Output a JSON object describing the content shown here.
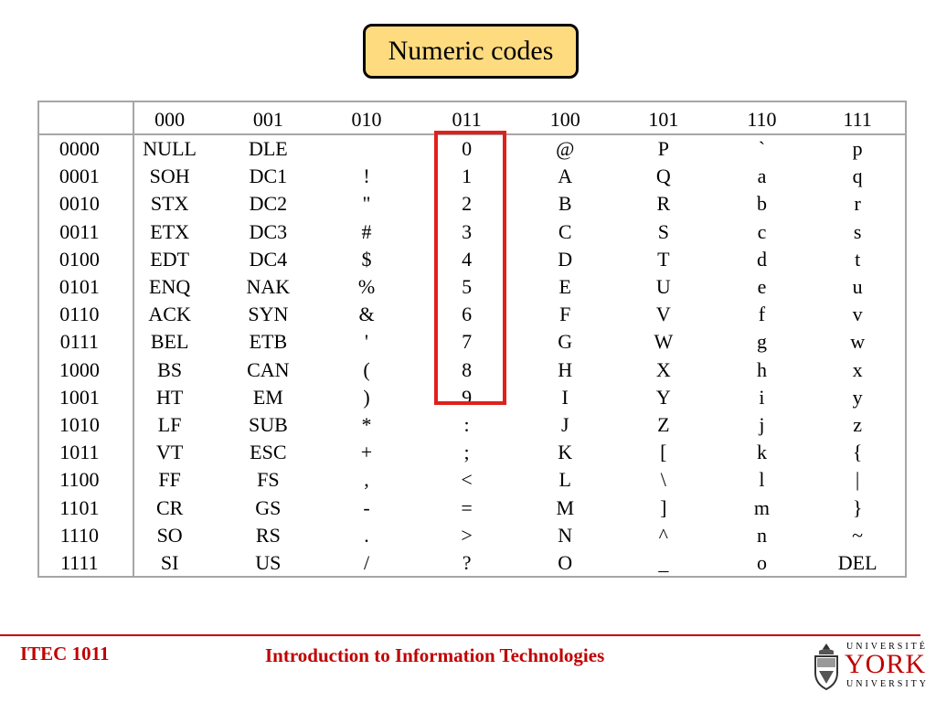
{
  "slide": {
    "title": "Numeric codes"
  },
  "table": {
    "corner": "",
    "col_headers": [
      "000",
      "001",
      "010",
      "011",
      "100",
      "101",
      "110",
      "111"
    ],
    "rows": [
      {
        "code": "0000",
        "cells": [
          "NULL",
          "DLE",
          "",
          "0",
          "@",
          "P",
          "`",
          "p"
        ]
      },
      {
        "code": "0001",
        "cells": [
          "SOH",
          "DC1",
          "!",
          "1",
          "A",
          "Q",
          "a",
          "q"
        ]
      },
      {
        "code": "0010",
        "cells": [
          "STX",
          "DC2",
          "\"",
          "2",
          "B",
          "R",
          "b",
          "r"
        ]
      },
      {
        "code": "0011",
        "cells": [
          "ETX",
          "DC3",
          "#",
          "3",
          "C",
          "S",
          "c",
          "s"
        ]
      },
      {
        "code": "0100",
        "cells": [
          "EDT",
          "DC4",
          "$",
          "4",
          "D",
          "T",
          "d",
          "t"
        ]
      },
      {
        "code": "0101",
        "cells": [
          "ENQ",
          "NAK",
          "%",
          "5",
          "E",
          "U",
          "e",
          "u"
        ]
      },
      {
        "code": "0110",
        "cells": [
          "ACK",
          "SYN",
          "&",
          "6",
          "F",
          "V",
          "f",
          "v"
        ]
      },
      {
        "code": "0111",
        "cells": [
          "BEL",
          "ETB",
          "'",
          "7",
          "G",
          "W",
          "g",
          "w"
        ]
      },
      {
        "code": "1000",
        "cells": [
          "BS",
          "CAN",
          "(",
          "8",
          "H",
          "X",
          "h",
          "x"
        ]
      },
      {
        "code": "1001",
        "cells": [
          "HT",
          "EM",
          ")",
          "9",
          "I",
          "Y",
          "i",
          "y"
        ]
      },
      {
        "code": "1010",
        "cells": [
          "LF",
          "SUB",
          "*",
          ":",
          "J",
          "Z",
          "j",
          "z"
        ]
      },
      {
        "code": "1011",
        "cells": [
          "VT",
          "ESC",
          "+",
          ";",
          "K",
          "[",
          "k",
          "{"
        ]
      },
      {
        "code": "1100",
        "cells": [
          "FF",
          "FS",
          ",",
          "<",
          "L",
          "\\",
          "l",
          "|"
        ]
      },
      {
        "code": "1101",
        "cells": [
          "CR",
          "GS",
          "-",
          "=",
          "M",
          "]",
          "m",
          "}"
        ]
      },
      {
        "code": "1110",
        "cells": [
          "SO",
          "RS",
          ".",
          ">",
          "N",
          "^",
          "n",
          "~"
        ]
      },
      {
        "code": "1111",
        "cells": [
          "SI",
          "US",
          "/",
          "?",
          "O",
          "_",
          "o",
          "DEL"
        ]
      }
    ]
  },
  "highlight": {
    "color": "#e0201c",
    "column": "011",
    "rows": [
      "0000",
      "1001"
    ]
  },
  "footer": {
    "course": "ITEC 1011",
    "subtitle": "Introduction to Information Technologies",
    "accent_color": "#c00000"
  },
  "logo": {
    "top": "UNIVERSITÉ",
    "main": "YORK",
    "bottom": "UNIVERSITY",
    "icon": "crest-icon"
  }
}
